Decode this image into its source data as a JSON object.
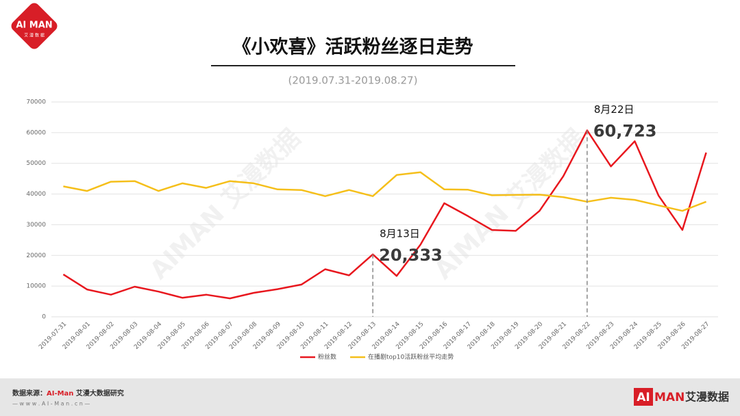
{
  "logo": {
    "mark": "AI MAN",
    "name": "艾 漫 数 据"
  },
  "watermark": "AIMAN 艾漫数据",
  "footer": {
    "source_label": "数据来源：",
    "source_brand": "AI-Man",
    "source_rest": " 艾漫大数据研究",
    "url": "— w w w . A I - M a n . c n —",
    "logo_ai": "AI",
    "logo_man": "MAN",
    "logo_name": "艾漫数据"
  },
  "chart_data": {
    "type": "line",
    "title": "《小欢喜》活跃粉丝逐日走势",
    "subtitle": "(2019.07.31-2019.08.27)",
    "categories": [
      "2019-07-31",
      "2019-08-01",
      "2019-08-02",
      "2019-08-03",
      "2019-08-04",
      "2019-08-05",
      "2019-08-06",
      "2019-08-07",
      "2019-08-08",
      "2019-08-09",
      "2019-08-10",
      "2019-08-11",
      "2019-08-12",
      "2019-08-13",
      "2019-08-14",
      "2019-08-15",
      "2019-08-16",
      "2019-08-17",
      "2019-08-18",
      "2019-08-19",
      "2019-08-20",
      "2019-08-21",
      "2019-08-22",
      "2019-08-23",
      "2019-08-24",
      "2019-08-25",
      "2019-08-26",
      "2019-08-27"
    ],
    "series": [
      {
        "name": "粉丝数",
        "color": "#e8171e",
        "values": [
          13800,
          8900,
          7200,
          9800,
          8200,
          6200,
          7200,
          6000,
          7800,
          9000,
          10500,
          15500,
          13500,
          20333,
          13300,
          23500,
          37000,
          32800,
          28300,
          28000,
          34500,
          45800,
          60723,
          49000,
          57200,
          39500,
          28300,
          53500
        ],
        "value_labels": [
          null,
          null,
          null,
          null,
          null,
          null,
          null,
          null,
          null,
          null,
          null,
          null,
          null,
          "20,333",
          null,
          null,
          null,
          null,
          null,
          null,
          null,
          null,
          "60,723",
          null,
          null,
          null,
          null,
          null
        ]
      },
      {
        "name": "在播剧top10活跃粉丝平均走势",
        "color": "#f5bf1a",
        "values": [
          42500,
          41000,
          44000,
          44200,
          41000,
          43500,
          42000,
          44200,
          43500,
          41500,
          41300,
          39300,
          41300,
          39300,
          46200,
          47100,
          41500,
          41400,
          39600,
          39700,
          39800,
          39000,
          37500,
          38800,
          38100,
          36300,
          34500,
          37500
        ]
      }
    ],
    "annotations": [
      "8月13日",
      "8月22日"
    ],
    "ylim": [
      0,
      70000
    ],
    "yticks": [
      0,
      10000,
      20000,
      30000,
      40000,
      50000,
      60000,
      70000
    ],
    "grid": true,
    "legend": "bottom"
  }
}
